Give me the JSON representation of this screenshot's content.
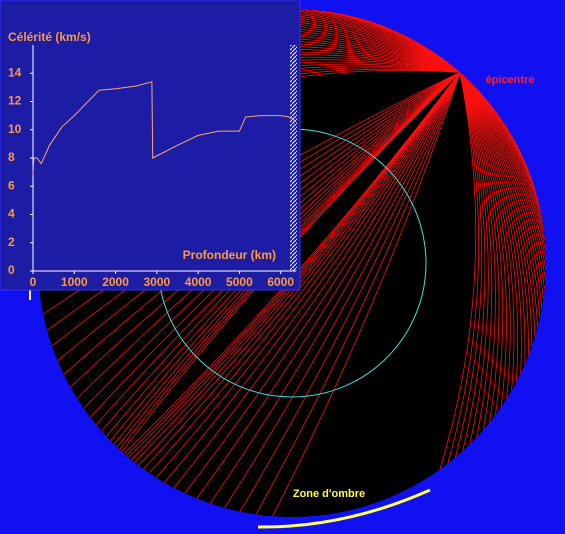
{
  "chart_data": {
    "type": "line",
    "title": "Célérité (km/s)",
    "x_label": "Profondeur (km)",
    "x": [
      0,
      20,
      100,
      200,
      400,
      700,
      1000,
      1600,
      2000,
      2500,
      2880,
      2900,
      3500,
      4000,
      4500,
      5000,
      5150,
      5500,
      6000,
      6200,
      6371
    ],
    "series": [
      {
        "name": "Célérité",
        "color": "#ffa870",
        "values": [
          6.8,
          8.0,
          8.0,
          7.6,
          8.9,
          10.2,
          11.0,
          12.8,
          12.9,
          13.1,
          13.4,
          8.0,
          8.9,
          9.6,
          9.9,
          9.9,
          10.9,
          11.0,
          11.0,
          10.9,
          10.6
        ]
      }
    ],
    "xlim": [
      0,
      6371
    ],
    "xticks": [
      0,
      1000,
      2000,
      3000,
      4000,
      5000,
      6000
    ],
    "ylim": [
      0,
      16
    ],
    "yticks": [
      0,
      2,
      4,
      6,
      8,
      10,
      12,
      14
    ]
  },
  "diagram": {
    "epicenter_label": "épicentre",
    "shadow_zone_label": "Zone d'ombre"
  }
}
